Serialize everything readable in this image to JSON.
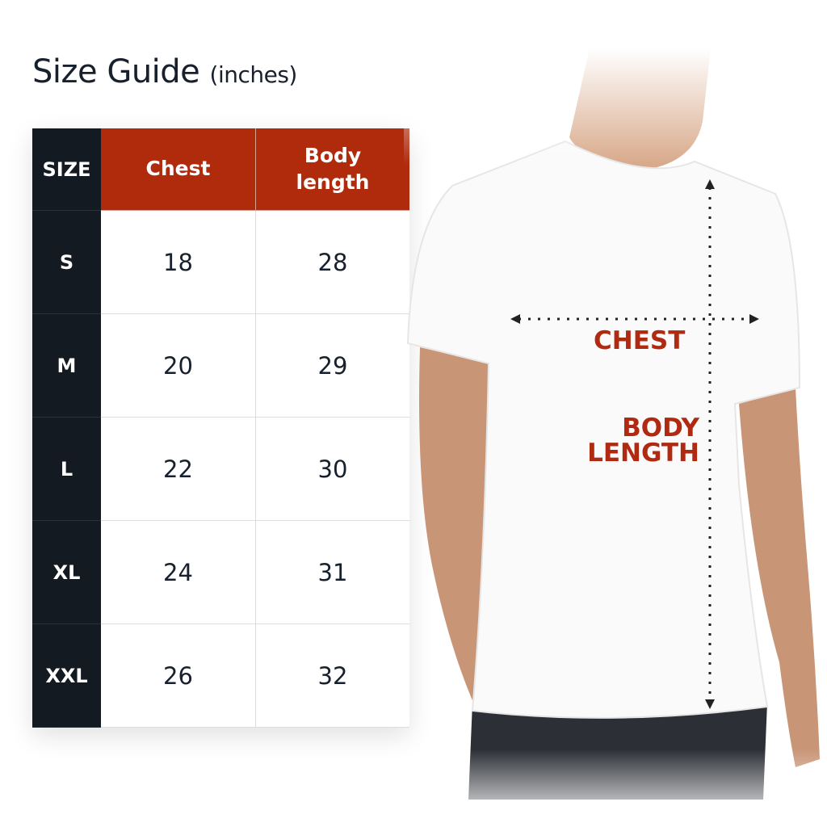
{
  "title": {
    "main": "Size Guide",
    "unit": "(inches)"
  },
  "table": {
    "headers": {
      "size": "SIZE",
      "chest": "Chest",
      "body_length_1": "Body",
      "body_length_2": "length"
    },
    "rows": [
      {
        "size": "S",
        "chest": "18",
        "body_length": "28"
      },
      {
        "size": "M",
        "chest": "20",
        "body_length": "29"
      },
      {
        "size": "L",
        "chest": "22",
        "body_length": "30"
      },
      {
        "size": "XL",
        "chest": "24",
        "body_length": "31"
      },
      {
        "size": "XXL",
        "chest": "26",
        "body_length": "32"
      }
    ]
  },
  "diagram": {
    "chest_label": "CHEST",
    "body_label_1": "BODY",
    "body_label_2": "LENGTH"
  },
  "colors": {
    "header_red": "#b02a0c",
    "size_column": "#131a22",
    "label_red": "#b02a12",
    "text": "#17202c"
  }
}
